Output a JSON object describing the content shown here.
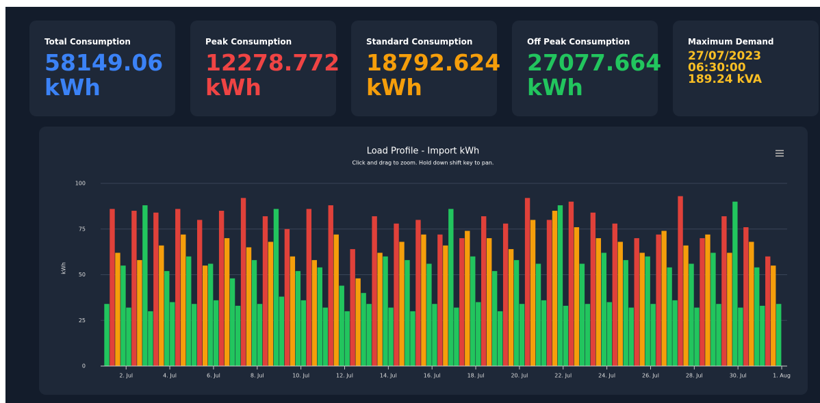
{
  "cards": [
    {
      "title": "Total Consumption",
      "value": "58149.06",
      "unit": "kWh",
      "color": "#3b82f6"
    },
    {
      "title": "Peak Consumption",
      "value": "12278.772",
      "unit": "kWh",
      "color": "#ef4444"
    },
    {
      "title": "Standard Consumption",
      "value": "18792.624",
      "unit": "kWh",
      "color": "#f59e0b"
    },
    {
      "title": "Off Peak Consumption",
      "value": "27077.664",
      "unit": "kWh",
      "color": "#22c55e"
    }
  ],
  "demand": {
    "title": "Maximum Demand",
    "date": "27/07/2023",
    "time": "06:30:00",
    "value": "189.24 kVA",
    "color": "#fbbf24"
  },
  "chart_data": {
    "type": "bar",
    "title": "Load Profile - Import kWh",
    "subtitle": "Click and drag to zoom. Hold down shift key to pan.",
    "y_label": "kWh",
    "xlim": [
      -4,
      750
    ],
    "ylim": [
      0,
      100
    ],
    "yticks": [
      0,
      25,
      50,
      75,
      100
    ],
    "grid": true,
    "xticks": [
      {
        "value": 24,
        "label": "2. Jul"
      },
      {
        "value": 72,
        "label": "4. Jul"
      },
      {
        "value": 120,
        "label": "6. Jul"
      },
      {
        "value": 168,
        "label": "8. Jul"
      },
      {
        "value": 216,
        "label": "10. Jul"
      },
      {
        "value": 264,
        "label": "12. Jul"
      },
      {
        "value": 312,
        "label": "14. Jul"
      },
      {
        "value": 360,
        "label": "16. Jul"
      },
      {
        "value": 408,
        "label": "18. Jul"
      },
      {
        "value": 456,
        "label": "20. Jul"
      },
      {
        "value": 504,
        "label": "22. Jul"
      },
      {
        "value": 552,
        "label": "24. Jul"
      },
      {
        "value": 600,
        "label": "26. Jul"
      },
      {
        "value": 648,
        "label": "28. Jul"
      },
      {
        "value": 696,
        "label": "30. Jul"
      },
      {
        "value": 744,
        "label": "1. Aug"
      }
    ],
    "series": [
      {
        "color": "#22c55e",
        "x": [
          0,
          18,
          24,
          42,
          48,
          66,
          72,
          90,
          96,
          114,
          120,
          138,
          144,
          162,
          168,
          186,
          192,
          210,
          216,
          234,
          240,
          258,
          264,
          282,
          288,
          306,
          312,
          330,
          336,
          354,
          360,
          378,
          384,
          402,
          408,
          426,
          432,
          450,
          456,
          474,
          480,
          498,
          504,
          522,
          528,
          546,
          552,
          570,
          576,
          594,
          600,
          618,
          624,
          642,
          648,
          666,
          672,
          690,
          696,
          714,
          720,
          738
        ],
        "values": [
          34,
          55,
          32,
          88,
          30,
          52,
          35,
          60,
          34,
          56,
          36,
          48,
          33,
          58,
          34,
          86,
          38,
          52,
          36,
          54,
          32,
          44,
          30,
          40,
          34,
          60,
          32,
          58,
          30,
          56,
          34,
          86,
          32,
          60,
          35,
          52,
          30,
          58,
          34,
          56,
          36,
          88,
          33,
          56,
          34,
          62,
          35,
          58,
          32,
          60,
          34,
          54,
          36,
          56,
          32,
          62,
          34,
          90,
          32,
          54,
          33,
          34
        ]
      },
      {
        "color": "#e0413a",
        "x": [
          6,
          30,
          54,
          78,
          102,
          126,
          150,
          174,
          198,
          222,
          246,
          270,
          294,
          318,
          342,
          366,
          390,
          414,
          438,
          462,
          486,
          510,
          534,
          558,
          582,
          606,
          630,
          654,
          678,
          702,
          726
        ],
        "values": [
          86,
          85,
          84,
          86,
          80,
          85,
          92,
          82,
          75,
          86,
          88,
          64,
          82,
          78,
          80,
          72,
          70,
          82,
          78,
          92,
          80,
          90,
          84,
          78,
          70,
          72,
          93,
          70,
          82,
          76,
          60
        ]
      },
      {
        "color": "#f59e0b",
        "x": [
          12,
          36,
          60,
          84,
          108,
          132,
          156,
          180,
          204,
          228,
          252,
          276,
          300,
          324,
          348,
          372,
          396,
          420,
          444,
          468,
          492,
          516,
          540,
          564,
          588,
          612,
          636,
          660,
          684,
          708,
          732
        ],
        "values": [
          62,
          58,
          66,
          72,
          55,
          70,
          65,
          68,
          60,
          58,
          72,
          48,
          62,
          68,
          72,
          66,
          74,
          70,
          64,
          80,
          85,
          76,
          70,
          68,
          62,
          74,
          66,
          72,
          62,
          68,
          55
        ]
      }
    ]
  }
}
